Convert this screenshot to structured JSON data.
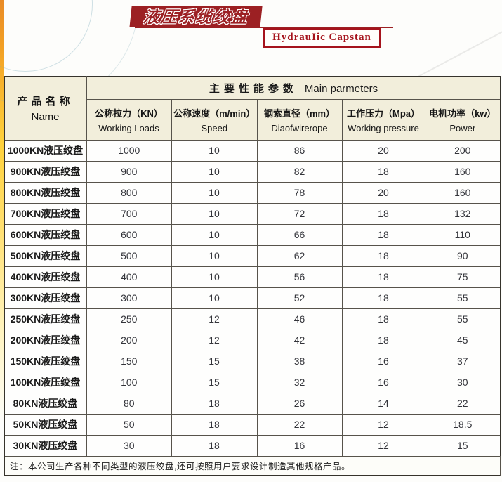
{
  "banner": {
    "title_cn": "液压系缆绞盘",
    "title_en": "HydrauIic Capstan"
  },
  "table": {
    "name_header": {
      "cn": "产品名称",
      "en": "Name"
    },
    "group_header": {
      "cn": "主要性能参数",
      "en": "Main parmeters"
    },
    "columns": [
      {
        "cn": "公称拉力（KN）",
        "en": "Working Loads"
      },
      {
        "cn": "公称速度（m/min）",
        "en": "Speed"
      },
      {
        "cn": "钢索直径（mm）",
        "en": "Diaofwirerope"
      },
      {
        "cn": "工作压力（Mpa）",
        "en": "Working pressure"
      },
      {
        "cn": "电机功率（kw）",
        "en": "Power"
      }
    ],
    "rows": [
      {
        "name": "1000KN液压绞盘",
        "values": [
          "1000",
          "10",
          "86",
          "20",
          "200"
        ]
      },
      {
        "name": "900KN液压绞盘",
        "values": [
          "900",
          "10",
          "82",
          "18",
          "160"
        ]
      },
      {
        "name": "800KN液压绞盘",
        "values": [
          "800",
          "10",
          "78",
          "20",
          "160"
        ]
      },
      {
        "name": "700KN液压绞盘",
        "values": [
          "700",
          "10",
          "72",
          "18",
          "132"
        ]
      },
      {
        "name": "600KN液压绞盘",
        "values": [
          "600",
          "10",
          "66",
          "18",
          "110"
        ]
      },
      {
        "name": "500KN液压绞盘",
        "values": [
          "500",
          "10",
          "62",
          "18",
          "90"
        ]
      },
      {
        "name": "400KN液压绞盘",
        "values": [
          "400",
          "10",
          "56",
          "18",
          "75"
        ]
      },
      {
        "name": "300KN液压绞盘",
        "values": [
          "300",
          "10",
          "52",
          "18",
          "55"
        ]
      },
      {
        "name": "250KN液压绞盘",
        "values": [
          "250",
          "12",
          "46",
          "18",
          "55"
        ]
      },
      {
        "name": "200KN液压绞盘",
        "values": [
          "200",
          "12",
          "42",
          "18",
          "45"
        ]
      },
      {
        "name": "150KN液压绞盘",
        "values": [
          "150",
          "15",
          "38",
          "16",
          "37"
        ]
      },
      {
        "name": "100KN液压绞盘",
        "values": [
          "100",
          "15",
          "32",
          "16",
          "30"
        ]
      },
      {
        "name": "80KN液压绞盘",
        "values": [
          "80",
          "18",
          "26",
          "14",
          "22"
        ]
      },
      {
        "name": "50KN液压绞盘",
        "values": [
          "50",
          "18",
          "22",
          "12",
          "18.5"
        ]
      },
      {
        "name": "30KN液压绞盘",
        "values": [
          "30",
          "18",
          "16",
          "12",
          "15"
        ]
      }
    ],
    "note": "注：本公司生产各种不同类型的液压绞盘,还可按照用户要求设计制造其他规格产品。"
  },
  "colors": {
    "banner_red": "#9c2023",
    "accent_red": "#a5131c",
    "header_beige": "#f2eedb",
    "stripe_orange": "#f2a024",
    "stripe_yellow": "#ffd23c",
    "border_dark": "#36332c"
  }
}
